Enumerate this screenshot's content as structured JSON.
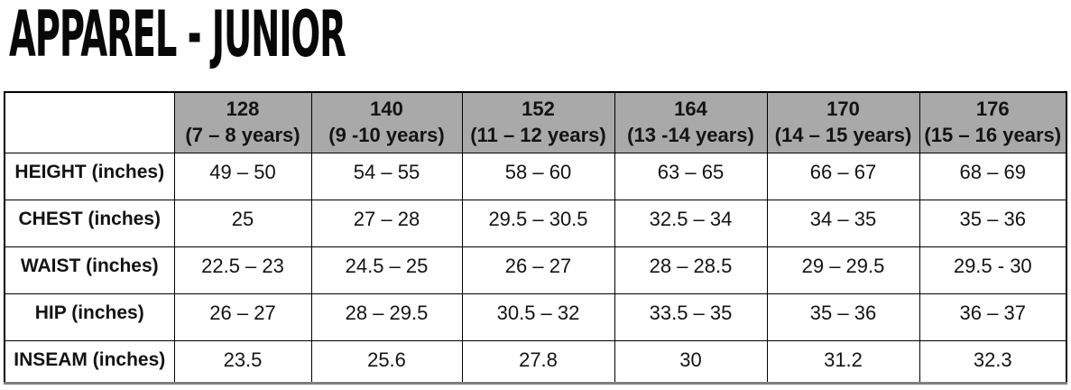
{
  "page": {
    "title": "APPAREL - JUNIOR"
  },
  "size_table": {
    "corner_label": "",
    "columns": [
      {
        "size": "128",
        "age": "(7 – 8 years)"
      },
      {
        "size": "140",
        "age": "(9 -10 years)"
      },
      {
        "size": "152",
        "age": "(11 – 12 years)"
      },
      {
        "size": "164",
        "age": "(13 -14 years)"
      },
      {
        "size": "170",
        "age": "(14 – 15 years)"
      },
      {
        "size": "176",
        "age": "(15 – 16 years)"
      }
    ],
    "rows": [
      {
        "label": "HEIGHT (inches)",
        "values": [
          "49 – 50",
          "54 – 55",
          "58 – 60",
          "63 – 65",
          "66 – 67",
          "68 – 69"
        ]
      },
      {
        "label": "CHEST (inches)",
        "values": [
          "25",
          "27 – 28",
          "29.5 – 30.5",
          "32.5 – 34",
          "34 – 35",
          "35 – 36"
        ]
      },
      {
        "label": "WAIST (inches)",
        "values": [
          "22.5 – 23",
          "24.5 – 25",
          "26 – 27",
          "28 – 28.5",
          "29 – 29.5",
          "29.5 - 30"
        ]
      },
      {
        "label": "HIP (inches)",
        "values": [
          "26 – 27",
          "28 – 29.5",
          "30.5 – 32",
          "33.5 – 35",
          "35 – 36",
          "36 – 37"
        ]
      },
      {
        "label": "INSEAM (inches)",
        "values": [
          "23.5",
          "25.6",
          "27.8",
          "30",
          "31.2",
          "32.3"
        ]
      }
    ]
  },
  "colors": {
    "header_bg": "#a9a9a9",
    "border_color": "#000000",
    "bottom_bar": "#7f7f7f"
  }
}
